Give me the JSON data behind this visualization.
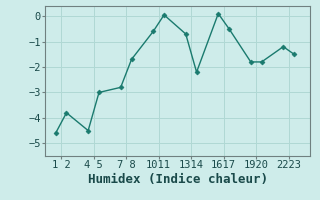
{
  "xlabel": "Humidex (Indice chaleur)",
  "x_values": [
    1,
    2,
    4,
    5,
    7,
    8,
    10,
    11,
    13,
    14,
    16,
    17,
    19,
    20,
    22,
    23
  ],
  "y_values": [
    -4.6,
    -3.8,
    -4.5,
    -3.0,
    -2.8,
    -1.7,
    -0.6,
    0.05,
    -0.7,
    -2.2,
    0.1,
    -0.5,
    -1.8,
    -1.8,
    -1.2,
    -1.5
  ],
  "ylim": [
    -5.5,
    0.4
  ],
  "xlim": [
    0.0,
    24.5
  ],
  "yticks": [
    0,
    -1,
    -2,
    -3,
    -4,
    -5
  ],
  "xtick_positions": [
    1.5,
    4.5,
    7.5,
    10.5,
    13.5,
    16.5,
    19.5,
    22.5
  ],
  "xtick_labels": [
    "1 2",
    "4 5",
    "7 8",
    "1011",
    "1314",
    "1617",
    "1920",
    "2223"
  ],
  "line_color": "#1a7a6e",
  "marker": "D",
  "marker_size": 2.5,
  "bg_color": "#ceecea",
  "grid_color": "#b0d8d4",
  "tick_label_fontsize": 7.5,
  "xlabel_fontsize": 9.0,
  "spine_color": "#708080"
}
